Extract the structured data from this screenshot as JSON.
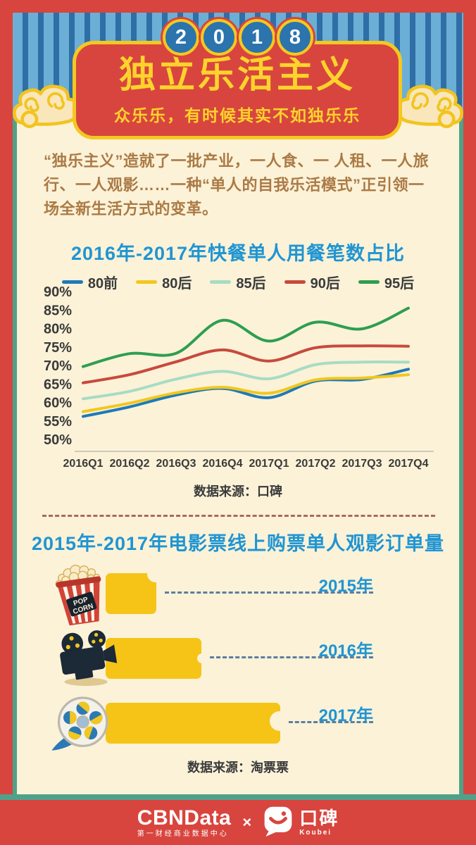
{
  "poster": {
    "colors": {
      "background": "#d8453e",
      "card": "#fbf2d8",
      "teal_border": "#4fa28a",
      "stripe_light": "#6cafd6",
      "stripe_dark": "#2f6ea6",
      "accent_blue": "#2095d2",
      "accent_yellow": "#f5c81f",
      "title_yellow": "#fdd32c",
      "bar_yellow": "#f5c417",
      "divider_red": "#a96a5c",
      "dash_blue": "#5b7fa0",
      "text_dark": "#3a3a3a",
      "intro_brown": "#ab7a45"
    },
    "header": {
      "year_digits": [
        "2",
        "0",
        "1",
        "8"
      ],
      "title": "独立乐活主义",
      "subtitle": "众乐乐，有时候其实不如独乐乐"
    },
    "intro_text": "“独乐主义”造就了一批产业，一人食、一 人租、一人旅行、一人观影……一种“单人的自我乐活模式”正引领一场全新生活方式的变革。",
    "footer": {
      "cbn_name": "CBNData",
      "cbn_subtitle": "第一财经商业数据中心",
      "separator": "×",
      "koubei_name": "口碑",
      "koubei_en": "Koubei"
    }
  },
  "chart_data": [
    {
      "type": "line",
      "title": "2016年-2017年快餐单人用餐笔数占比",
      "x": [
        "2016Q1",
        "2016Q2",
        "2016Q3",
        "2016Q4",
        "2017Q1",
        "2017Q2",
        "2017Q3",
        "2017Q4"
      ],
      "ylim": [
        50,
        90
      ],
      "yticks": [
        90,
        85,
        80,
        75,
        70,
        65,
        60,
        55,
        50
      ],
      "ytick_format": "percent",
      "grid": false,
      "legend_position": "top",
      "series": [
        {
          "name": "80前",
          "color": "#1d7ab8",
          "values": [
            56.2,
            58.8,
            62.0,
            63.8,
            61.3,
            65.8,
            66.2,
            69.0
          ]
        },
        {
          "name": "80后",
          "color": "#f2c71d",
          "values": [
            57.5,
            59.8,
            62.6,
            64.1,
            62.5,
            66.1,
            66.6,
            67.5
          ]
        },
        {
          "name": "85后",
          "color": "#a6dcc4",
          "values": [
            61.0,
            63.0,
            66.3,
            68.4,
            66.4,
            70.2,
            70.9,
            70.9
          ]
        },
        {
          "name": "90后",
          "color": "#c74a3c",
          "values": [
            65.3,
            67.5,
            71.0,
            74.2,
            71.2,
            74.8,
            75.3,
            75.2
          ]
        },
        {
          "name": "95后",
          "color": "#2f9e50",
          "values": [
            69.7,
            73.2,
            73.3,
            82.2,
            76.6,
            81.7,
            79.9,
            85.5
          ]
        }
      ],
      "source": "数据来源：口碑"
    },
    {
      "type": "bar",
      "title": "2015年-2017年电影票线上购票单人观影订单量",
      "orientation": "horizontal",
      "categories": [
        "2015年",
        "2016年",
        "2017年"
      ],
      "relative_values": [
        0.29,
        0.55,
        1.0
      ],
      "value_labels_shown": false,
      "icons": [
        "popcorn-bucket",
        "film-projector",
        "film-reel"
      ],
      "bar_color": "#f5c417",
      "source": "数据来源：淘票票"
    }
  ]
}
